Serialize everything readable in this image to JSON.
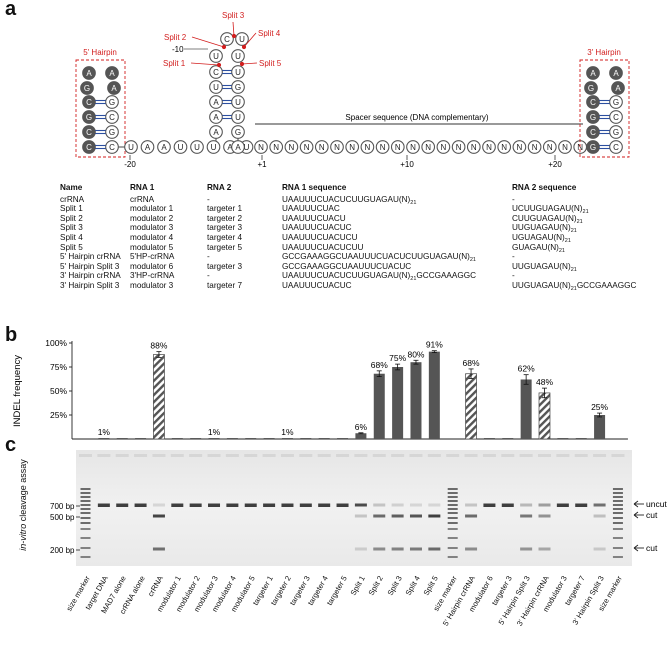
{
  "panel_letters": {
    "a": "a",
    "b": "b",
    "c": "c"
  },
  "panel_a": {
    "hairpin_5_title": "5' Hairpin",
    "hairpin_3_title": "3' Hairpin",
    "split_labels": [
      "Split 1",
      "Split 2",
      "Split 3",
      "Split 4",
      "Split 5"
    ],
    "position_minus10": "-10",
    "spacer_label": "Spacer sequence (DNA complementary)",
    "positions": [
      "-20",
      "+1",
      "+10",
      "+20"
    ],
    "hairpin5_nts": [
      "A",
      "A",
      "G",
      "A",
      "C",
      "G",
      "C",
      "G",
      "G",
      "C"
    ],
    "stem_left_nts": [
      "U",
      "C",
      "U",
      "A",
      "A",
      "A"
    ],
    "stem_right_nts": [
      "C",
      "U",
      "G",
      "U",
      "U",
      "G"
    ],
    "linker_nts": [
      "U",
      "A",
      "A",
      "U",
      "U",
      "U",
      "A",
      "U"
    ],
    "hairpin3_nts": [
      "A",
      "A",
      "G",
      "A",
      "C",
      "G",
      "C",
      "G",
      "G",
      "C"
    ],
    "spacer_nt": "N"
  },
  "table": {
    "headers": [
      "Name",
      "RNA 1",
      "RNA 2",
      "RNA 1 sequence",
      "RNA 2 sequence"
    ],
    "rows": [
      {
        "name": "crRNA",
        "rna1": "crRNA",
        "rna2": "-",
        "seq1": "UAAUUUCUACUCUUGUAGAU(N)",
        "seq1_sub": "21",
        "seq1_tail": "",
        "seq2": "-",
        "seq2_sub": "",
        "seq2_tail": ""
      },
      {
        "name": "Split 1",
        "rna1": "modulator 1",
        "rna2": "targeter 1",
        "seq1": "UAAUUUCUAC",
        "seq1_sub": "",
        "seq1_tail": "",
        "seq2": "UCUUGUAGAU(N)",
        "seq2_sub": "21",
        "seq2_tail": ""
      },
      {
        "name": "Split 2",
        "rna1": "modulator 2",
        "rna2": "targeter 2",
        "seq1": "UAAUUUCUACU",
        "seq1_sub": "",
        "seq1_tail": "",
        "seq2": "CUUGUAGAU(N)",
        "seq2_sub": "21",
        "seq2_tail": ""
      },
      {
        "name": "Split 3",
        "rna1": "modulator 3",
        "rna2": "targeter 3",
        "seq1": "UAAUUUCUACUC",
        "seq1_sub": "",
        "seq1_tail": "",
        "seq2": "UUGUAGAU(N)",
        "seq2_sub": "21",
        "seq2_tail": ""
      },
      {
        "name": "Split 4",
        "rna1": "modulator 4",
        "rna2": "targeter 4",
        "seq1": "UAAUUUCUACUCU",
        "seq1_sub": "",
        "seq1_tail": "",
        "seq2": "UGUAGAU(N)",
        "seq2_sub": "21",
        "seq2_tail": ""
      },
      {
        "name": "Split 5",
        "rna1": "modulator 5",
        "rna2": "targeter 5",
        "seq1": "UAAUUUCUACUCUU",
        "seq1_sub": "",
        "seq1_tail": "",
        "seq2": "GUAGAU(N)",
        "seq2_sub": "21",
        "seq2_tail": ""
      },
      {
        "name": "5' Hairpin crRNA",
        "rna1": "5'HP-crRNA",
        "rna2": "-",
        "seq1": "GCCGAAAGGCUAAUUUCUACUCUUGUAGAU(N)",
        "seq1_sub": "21",
        "seq1_tail": "",
        "seq2": "-",
        "seq2_sub": "",
        "seq2_tail": ""
      },
      {
        "name": "5' Hairpin Split 3",
        "rna1": "modulator 6",
        "rna2": "targeter 3",
        "seq1": "GCCGAAAGGCUAAUUUCUACUC",
        "seq1_sub": "",
        "seq1_tail": "",
        "seq2": "UUGUAGAU(N)",
        "seq2_sub": "21",
        "seq2_tail": ""
      },
      {
        "name": "3' Hairpin crRNA",
        "rna1": "3'HP-crRNA",
        "rna2": "-",
        "seq1": "UAAUUUCUACUCUUGUAGAU(N)",
        "seq1_sub": "21",
        "seq1_tail": "GCCGAAAGGC",
        "seq2": "-",
        "seq2_sub": "",
        "seq2_tail": ""
      },
      {
        "name": "3' Hairpin Split 3",
        "rna1": "modulator 3",
        "rna2": "targeter 7",
        "seq1": "UAAUUUCUACUC",
        "seq1_sub": "",
        "seq1_tail": "",
        "seq2": "UUGUAGAU(N)",
        "seq2_sub": "21",
        "seq2_tail": "GCCGAAAGGC"
      }
    ]
  },
  "chart_data": {
    "type": "bar",
    "ylabel": "INDEL frequency",
    "ylim": [
      0,
      100
    ],
    "yticks": [
      "25%",
      "50%",
      "75%",
      "100%"
    ],
    "lanes": [
      "size marker",
      "target DNA",
      "MAD7 alone",
      "crRNA alone",
      "crRNA",
      "modulator 1",
      "modulator 2",
      "modulator 3",
      "modulator 4",
      "modulator 5",
      "targeter 1",
      "targeter 2",
      "targeter 3",
      "targeter 4",
      "targeter 5",
      "Split 1",
      "Split 2",
      "Split 3",
      "Split 4",
      "Split 5",
      "size marker",
      "5' Hairpin crRNA",
      "modulator 6",
      "targeter 3",
      "5' Hairpin Split 3",
      "3' Hairpin crRNA",
      "modulator 3",
      "targeter 7",
      "3' Hairpin Split 3",
      "size marker"
    ],
    "values": [
      null,
      1,
      1,
      1,
      88,
      1,
      1,
      1,
      1,
      1,
      1,
      1,
      1,
      1,
      1,
      6,
      68,
      75,
      80,
      91,
      null,
      68,
      1,
      1,
      62,
      48,
      1,
      1,
      25,
      null
    ],
    "errors": [
      0,
      0,
      0,
      0,
      3,
      0,
      0,
      0,
      0,
      0,
      0,
      0,
      0,
      0,
      0,
      0.5,
      3,
      3,
      2,
      1,
      0,
      5,
      0,
      0,
      5,
      5,
      0,
      0,
      2,
      0
    ],
    "hatched": [
      false,
      false,
      false,
      false,
      true,
      false,
      false,
      false,
      false,
      false,
      false,
      false,
      false,
      false,
      false,
      false,
      false,
      false,
      false,
      false,
      false,
      true,
      false,
      false,
      false,
      true,
      false,
      false,
      false,
      false
    ],
    "annotations": [
      {
        "lane": 1,
        "text": "1%"
      },
      {
        "lane": 4,
        "text": "88%"
      },
      {
        "lane": 7,
        "text": "1%"
      },
      {
        "lane": 11,
        "text": "1%"
      },
      {
        "lane": 15,
        "text": "6%"
      },
      {
        "lane": 16,
        "text": "68%"
      },
      {
        "lane": 17,
        "text": "75%"
      },
      {
        "lane": 18,
        "text": "80%"
      },
      {
        "lane": 19,
        "text": "91%"
      },
      {
        "lane": 21,
        "text": "68%"
      },
      {
        "lane": 24,
        "text": "62%"
      },
      {
        "lane": 25,
        "text": "48%"
      },
      {
        "lane": 28,
        "text": "25%"
      }
    ]
  },
  "gel": {
    "ylabel_italic": "in-vitro",
    "ylabel_rest": " cleavage assay",
    "size_labels": [
      "700 bp",
      "500 bp",
      "200 bp"
    ],
    "band_labels": [
      "uncut",
      "cut",
      "cut"
    ]
  }
}
